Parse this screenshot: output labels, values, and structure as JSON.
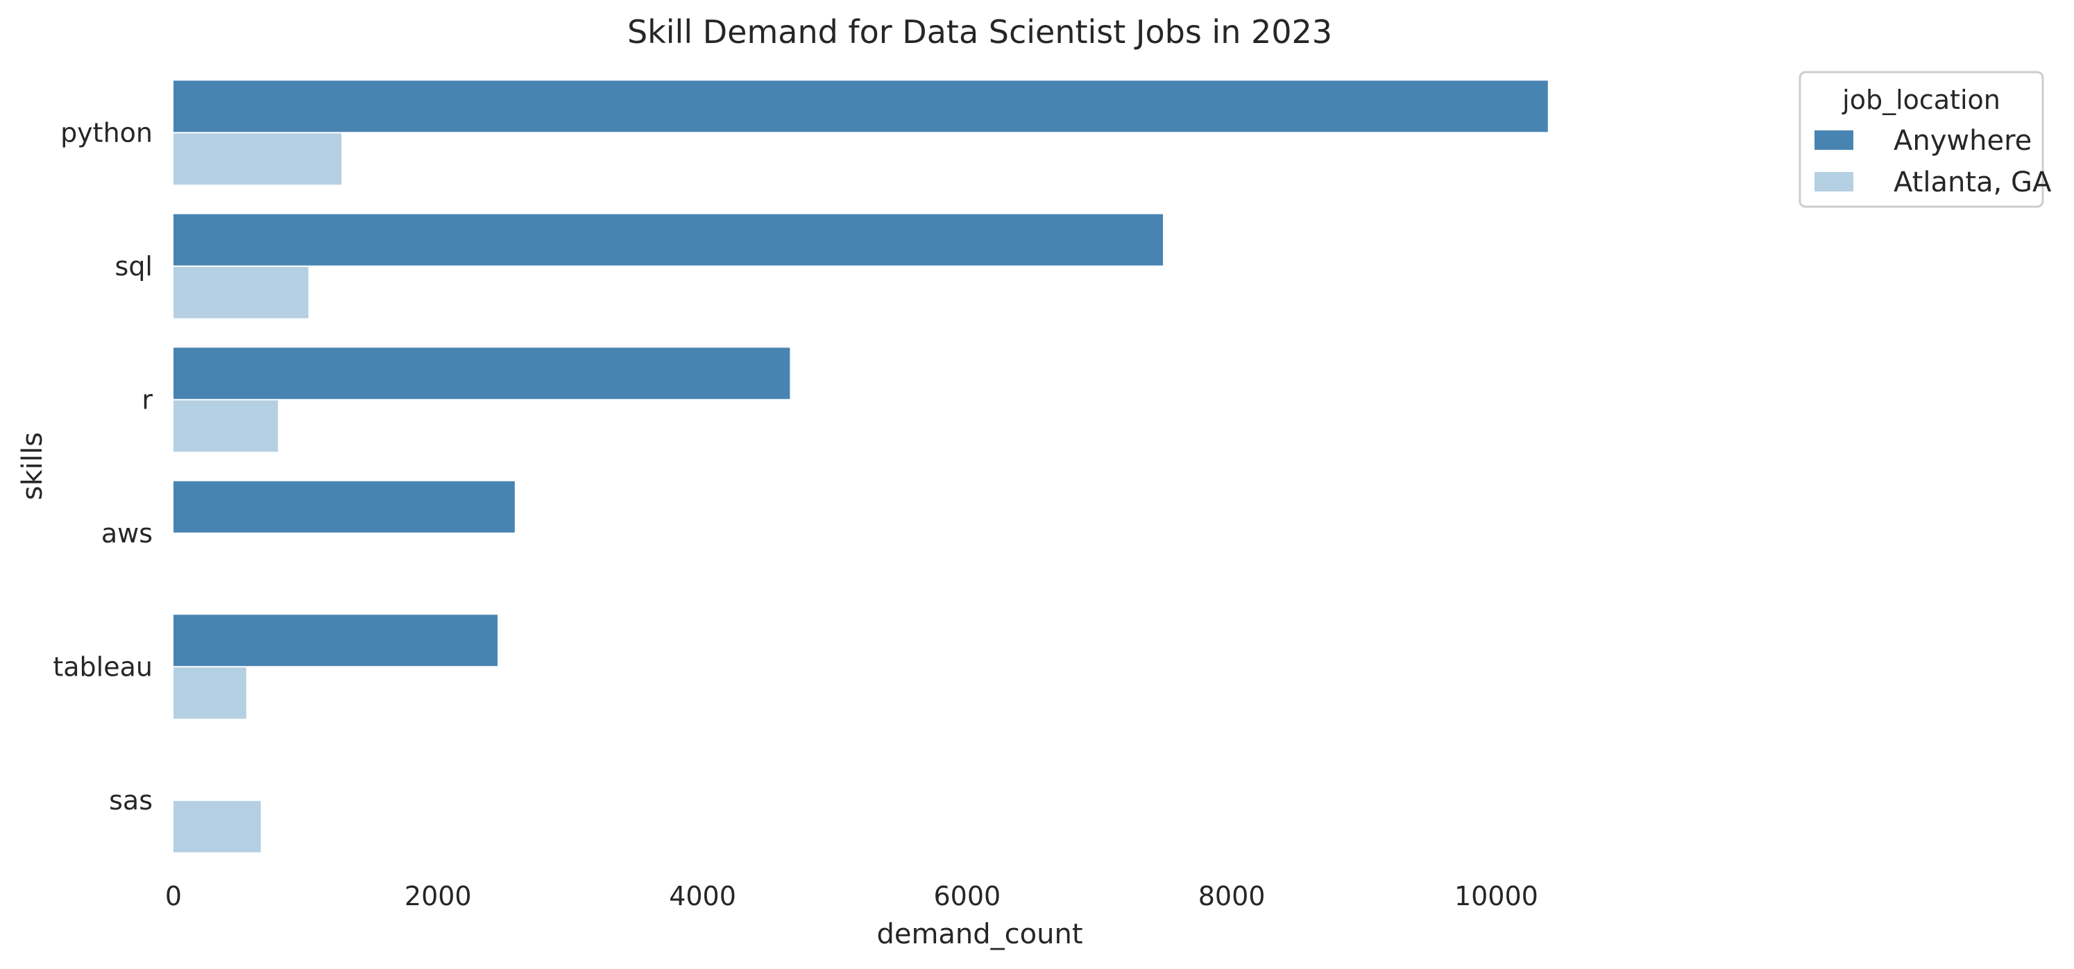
{
  "chart_data": {
    "type": "bar",
    "orientation": "horizontal",
    "title": "Skill Demand for Data Scientist Jobs in 2023",
    "xlabel": "demand_count",
    "ylabel": "skills",
    "categories": [
      "python",
      "sql",
      "r",
      "aws",
      "tableau",
      "sas"
    ],
    "series": [
      {
        "name": "Anywhere",
        "color": "#4884b2",
        "values": [
          10390,
          7480,
          4660,
          2580,
          2450,
          0
        ]
      },
      {
        "name": "Atlanta, GA",
        "color": "#b4d0e2",
        "values": [
          1270,
          1020,
          790,
          0,
          550,
          660
        ]
      }
    ],
    "xlim": [
      0,
      12500
    ],
    "xticks": [
      0,
      2000,
      4000,
      6000,
      8000,
      10000
    ],
    "xtick_labels": [
      "0",
      "2000",
      "4000",
      "6000",
      "8000",
      "10000"
    ],
    "grid": false,
    "legend": {
      "title": "job_location",
      "placement": "upper-right-outside"
    }
  }
}
